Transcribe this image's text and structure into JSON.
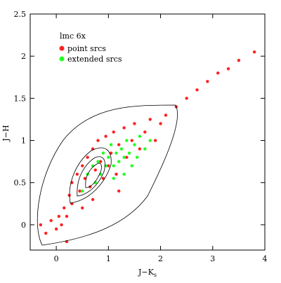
{
  "chart_data": {
    "type": "scatter",
    "annotation": "lmc 6x",
    "xlabel": "J−K",
    "xlabel_subscript": "s",
    "ylabel": "J−H",
    "xlim": [
      -0.5,
      4
    ],
    "ylim": [
      -0.3,
      2.5
    ],
    "xticks": [
      0,
      1,
      2,
      3,
      4
    ],
    "yticks": [
      0,
      0.5,
      1,
      1.5,
      2,
      2.5
    ],
    "series": [
      {
        "name": "point srcs",
        "color": "#ff2020",
        "x": [
          -0.2,
          -0.1,
          0,
          0.05,
          0.1,
          0.15,
          0.2,
          0.25,
          0.3,
          0.3,
          0.4,
          0.45,
          0.5,
          0.55,
          0.6,
          0.65,
          0.7,
          0.75,
          0.8,
          0.85,
          0.9,
          0.95,
          1.0,
          1.05,
          1.1,
          1.15,
          1.2,
          1.3,
          1.35,
          1.45,
          1.5,
          1.6,
          1.7,
          1.8,
          1.9,
          2.0,
          2.1,
          2.3,
          2.5,
          2.7,
          2.9,
          3.1,
          3.3,
          3.5,
          3.8,
          0.2,
          0.5,
          1.2,
          -0.3,
          0.7
        ],
        "values": [
          -0.1,
          0.05,
          -0.05,
          0.1,
          0.0,
          0.2,
          0.1,
          0.35,
          0.25,
          0.5,
          0.6,
          0.4,
          0.7,
          0.55,
          0.8,
          0.45,
          0.9,
          0.65,
          1.0,
          0.75,
          0.55,
          1.05,
          0.7,
          0.85,
          1.1,
          0.6,
          0.95,
          1.15,
          0.8,
          1.0,
          1.2,
          0.9,
          1.1,
          1.25,
          1.0,
          1.2,
          1.3,
          1.4,
          1.5,
          1.6,
          1.7,
          1.8,
          1.85,
          1.95,
          2.05,
          -0.2,
          0.2,
          0.4,
          0.0,
          0.3
        ]
      },
      {
        "name": "extended srcs",
        "color": "#20ff20",
        "x": [
          0.6,
          0.7,
          0.8,
          0.85,
          0.9,
          0.95,
          1.0,
          1.05,
          1.1,
          1.15,
          1.2,
          1.25,
          1.3,
          1.35,
          1.4,
          1.45,
          1.5,
          1.55,
          1.6,
          1.7,
          0.75,
          1.1,
          1.3,
          1.8,
          0.5
        ],
        "values": [
          0.6,
          0.7,
          0.75,
          0.6,
          0.85,
          0.7,
          0.8,
          0.95,
          0.7,
          0.85,
          0.75,
          0.9,
          0.8,
          1.0,
          0.85,
          0.7,
          0.95,
          0.8,
          1.05,
          0.9,
          0.5,
          0.55,
          0.6,
          1.0,
          0.4
        ]
      }
    ]
  }
}
